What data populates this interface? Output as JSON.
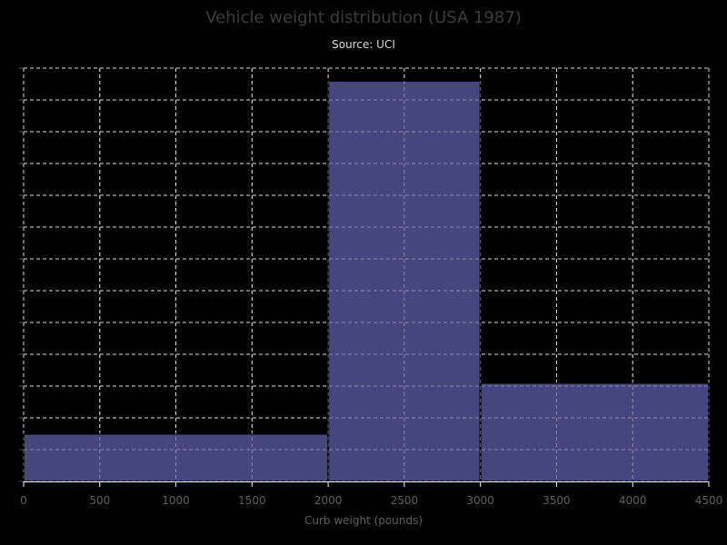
{
  "chart": {
    "title": "Vehicle weight distribution (USA 1987)",
    "subtitle": "Source: UCI",
    "xlabel": "Curb weight (pounds)"
  },
  "colors": {
    "background": "#000000",
    "bar_fill": "#46467e",
    "bar_edge": "#000000",
    "grid": "#dddddd",
    "axis": "#ffffff",
    "tick_label": "#5f5f5f"
  },
  "chart_data": {
    "type": "bar",
    "histogram": true,
    "title": "Vehicle weight distribution (USA 1987)",
    "subtitle": "Source: UCI",
    "xlabel": "Curb weight (pounds)",
    "ylabel": "",
    "bins": [
      {
        "x0": 0,
        "x1": 2000,
        "count": 15
      },
      {
        "x0": 2000,
        "x1": 3000,
        "count": 126
      },
      {
        "x0": 3000,
        "x1": 4500,
        "count": 31
      }
    ],
    "xlim": [
      0,
      4500
    ],
    "ylim": [
      0,
      130
    ],
    "xticks": [
      "0",
      "500",
      "1000",
      "1500",
      "2000",
      "2500",
      "3000",
      "3500",
      "4000",
      "4500"
    ],
    "xtick_values": [
      0,
      500,
      1000,
      1500,
      2000,
      2500,
      3000,
      3500,
      4000,
      4500
    ],
    "ytick_values": [
      0,
      10,
      20,
      30,
      40,
      50,
      60,
      70,
      80,
      90,
      100,
      110,
      120,
      130
    ],
    "ytick_labels_visible": false,
    "grid": true,
    "legend": "none"
  }
}
